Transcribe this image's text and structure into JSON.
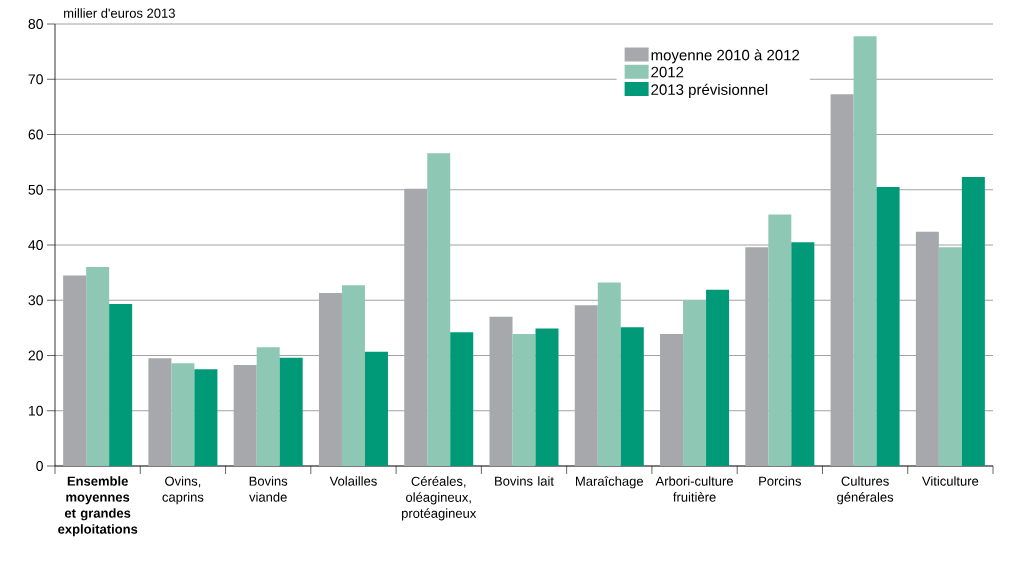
{
  "chart_data": {
    "type": "bar",
    "ylabel": "millier d'euros 2013",
    "categories": [
      "Ensemble moyennes et grandes exploitations",
      "Ovins, caprins",
      "Bovins viande",
      "Volailles",
      "Céréales, oléagineux, protéagineux",
      "Bovins lait",
      "Maraîchage",
      "Arbori-culture fruitière",
      "Porcins",
      "Cultures générales",
      "Viticulture"
    ],
    "series": [
      {
        "name": "moyenne 2010 à 2012",
        "color": "#a7a8ab",
        "values": [
          34.5,
          19.5,
          18.3,
          31.3,
          50.2,
          27.0,
          29.1,
          23.9,
          39.6,
          67.3,
          42.4
        ]
      },
      {
        "name": "2012",
        "color": "#8fc7b5",
        "values": [
          36.0,
          18.6,
          21.5,
          32.7,
          56.6,
          23.9,
          33.2,
          30.0,
          45.5,
          77.8,
          39.6
        ]
      },
      {
        "name": "2013 prévisionnel",
        "color": "#009a78",
        "values": [
          29.3,
          17.5,
          19.6,
          20.7,
          24.2,
          24.9,
          25.1,
          31.9,
          40.5,
          50.5,
          52.3
        ]
      }
    ],
    "ylim": [
      0,
      80
    ],
    "yticks": [
      0,
      10,
      20,
      30,
      40,
      50,
      60,
      70,
      80
    ],
    "grid": "y",
    "legend": "top"
  }
}
